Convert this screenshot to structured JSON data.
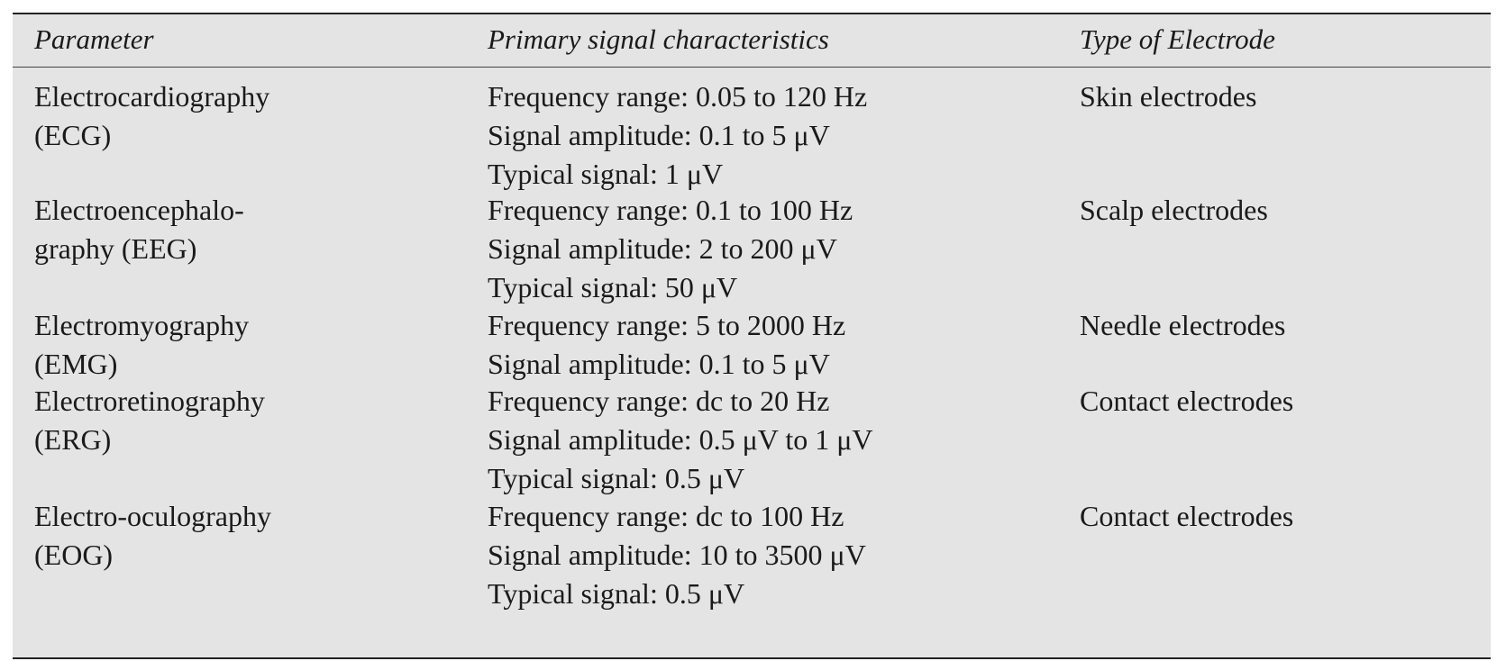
{
  "table": {
    "headers": {
      "parameter": "Parameter",
      "signal": "Primary signal characteristics",
      "electrode": "Type of Electrode"
    },
    "rows": [
      {
        "parameter_lines": [
          "Electrocardiography",
          "(ECG)"
        ],
        "signal_lines": [
          "Frequency range: 0.05 to 120 Hz",
          "Signal amplitude: 0.1 to 5 μV",
          "Typical signal: 1 μV"
        ],
        "electrode": "Skin electrodes"
      },
      {
        "parameter_lines": [
          "Electroencephalo-",
          "graphy (EEG)"
        ],
        "signal_lines": [
          "Frequency range: 0.1 to 100 Hz",
          "Signal amplitude: 2 to 200 μV",
          "Typical signal: 50 μV"
        ],
        "electrode": "Scalp electrodes"
      },
      {
        "parameter_lines": [
          "Electromyography",
          "(EMG)"
        ],
        "signal_lines": [
          "Frequency range: 5 to 2000 Hz",
          "Signal amplitude: 0.1 to 5 μV"
        ],
        "electrode": "Needle electrodes"
      },
      {
        "parameter_lines": [
          "Electroretinography",
          "(ERG)"
        ],
        "signal_lines": [
          "Frequency range: dc to 20 Hz",
          "Signal amplitude: 0.5 μV to 1 μV",
          "Typical signal: 0.5 μV"
        ],
        "electrode": "Contact electrodes"
      },
      {
        "parameter_lines": [
          "Electro-oculography",
          "(EOG)"
        ],
        "signal_lines": [
          "Frequency range: dc to 100 Hz",
          "Signal amplitude: 10 to 3500 μV",
          "Typical signal: 0.5 μV"
        ],
        "electrode": "Contact electrodes"
      }
    ]
  }
}
